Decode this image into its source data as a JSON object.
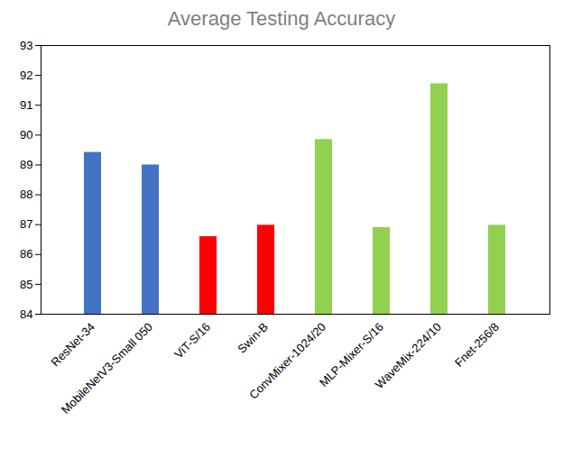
{
  "chart_data": {
    "type": "bar",
    "title": "Average Testing Accuracy",
    "categories": [
      "ResNet-34",
      "MobileNetV3-Small 050",
      "ViT-S/16",
      "Swin-B",
      "ConvMixer-1024/20",
      "MLP-Mixer-S/16",
      "WaveMix-224/10",
      "Fnet-256/8"
    ],
    "values": [
      89.42,
      89.0,
      86.6,
      86.98,
      89.85,
      86.9,
      91.72,
      86.98
    ],
    "colors": [
      "#4472c4",
      "#4472c4",
      "#ff0000",
      "#ff0000",
      "#92d050",
      "#92d050",
      "#92d050",
      "#92d050"
    ],
    "ylim": [
      84,
      93
    ],
    "yticks": [
      84,
      85,
      86,
      87,
      88,
      89,
      90,
      91,
      92,
      93
    ],
    "grid": false
  }
}
